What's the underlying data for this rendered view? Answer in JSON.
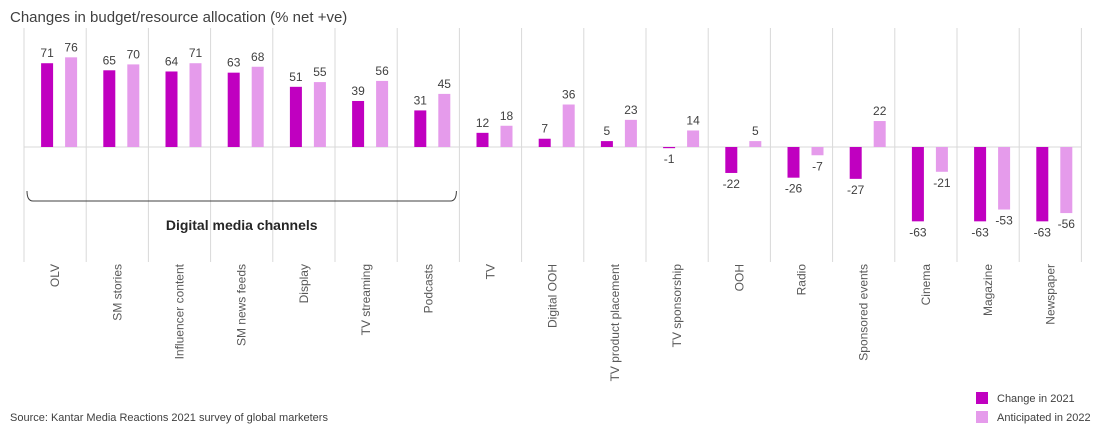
{
  "chart_data": {
    "type": "bar",
    "title": "Changes in budget/resource allocation (% net +ve)",
    "categories": [
      "OLV",
      "SM stories",
      "Influencer content",
      "SM news feeds",
      "Display",
      "TV streaming",
      "Podcasts",
      "TV",
      "Digital OOH",
      "TV product placement",
      "TV sponsorship",
      "OOH",
      "Radio",
      "Sponsored events",
      "Cinema",
      "Magazine",
      "Newspaper"
    ],
    "series": [
      {
        "name": "Change in 2021",
        "color": "#C000C0",
        "values": [
          71,
          65,
          64,
          63,
          51,
          39,
          31,
          12,
          7,
          5,
          -1,
          -22,
          -26,
          -27,
          -63,
          -63,
          -63
        ]
      },
      {
        "name": "Anticipated in 2022",
        "color": "#E59BEB",
        "values": [
          76,
          70,
          71,
          68,
          55,
          56,
          45,
          18,
          36,
          23,
          14,
          5,
          -7,
          22,
          -21,
          -53,
          -56
        ]
      }
    ],
    "ylim": [
      -80,
      100
    ],
    "xlabel": "",
    "ylabel": "",
    "grid": false,
    "group_annotation": {
      "label": "Digital media channels",
      "first_category": "OLV",
      "last_category": "Podcasts"
    },
    "legend_position": "bottom-right"
  },
  "source": "Source: Kantar Media Reactions 2021 survey of global marketers"
}
